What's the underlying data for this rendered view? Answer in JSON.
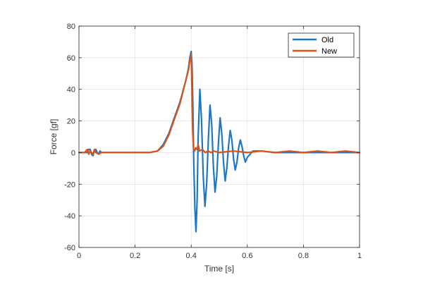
{
  "chart_data": {
    "type": "line",
    "title": "",
    "xlabel": "Time [s]",
    "ylabel": "Force [gf]",
    "xlim": [
      0,
      1
    ],
    "ylim": [
      -60,
      80
    ],
    "x_ticks": [
      0,
      0.2,
      0.4,
      0.6,
      0.8,
      1
    ],
    "x_tick_labels": [
      "0",
      "0.2",
      "0.4",
      "0.6",
      "0.8",
      "1"
    ],
    "y_ticks": [
      -60,
      -40,
      -20,
      0,
      20,
      40,
      60,
      80
    ],
    "y_tick_labels": [
      "-60",
      "-40",
      "-20",
      "0",
      "20",
      "40",
      "60",
      "80"
    ],
    "grid": true,
    "legend_position": "top-right",
    "series": [
      {
        "name": "Old",
        "color": "#1f77c4",
        "x": [
          0,
          0.02,
          0.03,
          0.035,
          0.04,
          0.045,
          0.05,
          0.055,
          0.06,
          0.065,
          0.07,
          0.075,
          0.08,
          0.09,
          0.1,
          0.15,
          0.2,
          0.25,
          0.28,
          0.3,
          0.32,
          0.34,
          0.36,
          0.38,
          0.39,
          0.395,
          0.4,
          0.403,
          0.406,
          0.409,
          0.413,
          0.417,
          0.421,
          0.425,
          0.431,
          0.437,
          0.443,
          0.449,
          0.455,
          0.461,
          0.467,
          0.473,
          0.479,
          0.485,
          0.491,
          0.497,
          0.503,
          0.509,
          0.515,
          0.521,
          0.527,
          0.533,
          0.539,
          0.545,
          0.551,
          0.557,
          0.563,
          0.569,
          0.575,
          0.581,
          0.587,
          0.593,
          0.6,
          0.62,
          0.65,
          0.7,
          0.8,
          0.9,
          1.0
        ],
        "y": [
          0,
          0,
          0,
          2,
          2,
          -1,
          -2,
          1,
          2,
          0,
          -1,
          1,
          0,
          0,
          0,
          0,
          0,
          0,
          1,
          5,
          12,
          22,
          32,
          45,
          53,
          60,
          64,
          55,
          30,
          -5,
          -35,
          -50,
          -30,
          10,
          40,
          20,
          -15,
          -34,
          -20,
          8,
          30,
          18,
          -8,
          -25,
          -15,
          6,
          22,
          12,
          -6,
          -18,
          -10,
          4,
          14,
          8,
          -4,
          -11,
          -6,
          3,
          8,
          4,
          -2,
          -6,
          -3,
          1,
          1,
          0,
          0,
          0,
          0
        ]
      },
      {
        "name": "New",
        "color": "#d95319",
        "x": [
          0,
          0.02,
          0.03,
          0.035,
          0.04,
          0.045,
          0.05,
          0.055,
          0.06,
          0.07,
          0.08,
          0.1,
          0.15,
          0.2,
          0.25,
          0.28,
          0.3,
          0.32,
          0.34,
          0.36,
          0.38,
          0.39,
          0.395,
          0.4,
          0.402,
          0.405,
          0.408,
          0.412,
          0.416,
          0.42,
          0.425,
          0.43,
          0.44,
          0.45,
          0.46,
          0.47,
          0.48,
          0.5,
          0.55,
          0.6,
          0.65,
          0.7,
          0.75,
          0.8,
          0.85,
          0.9,
          0.95,
          1.0
        ],
        "y": [
          0,
          0,
          2,
          -1,
          1,
          0,
          -1,
          2,
          0,
          -1,
          0,
          0,
          0,
          0,
          0,
          1,
          4,
          11,
          21,
          31,
          45,
          52,
          58,
          62,
          45,
          15,
          3,
          1,
          3,
          2,
          5,
          1,
          2,
          0,
          1,
          0,
          1,
          0,
          1,
          0,
          1,
          0,
          1,
          0,
          1,
          0,
          1,
          0
        ]
      }
    ]
  }
}
